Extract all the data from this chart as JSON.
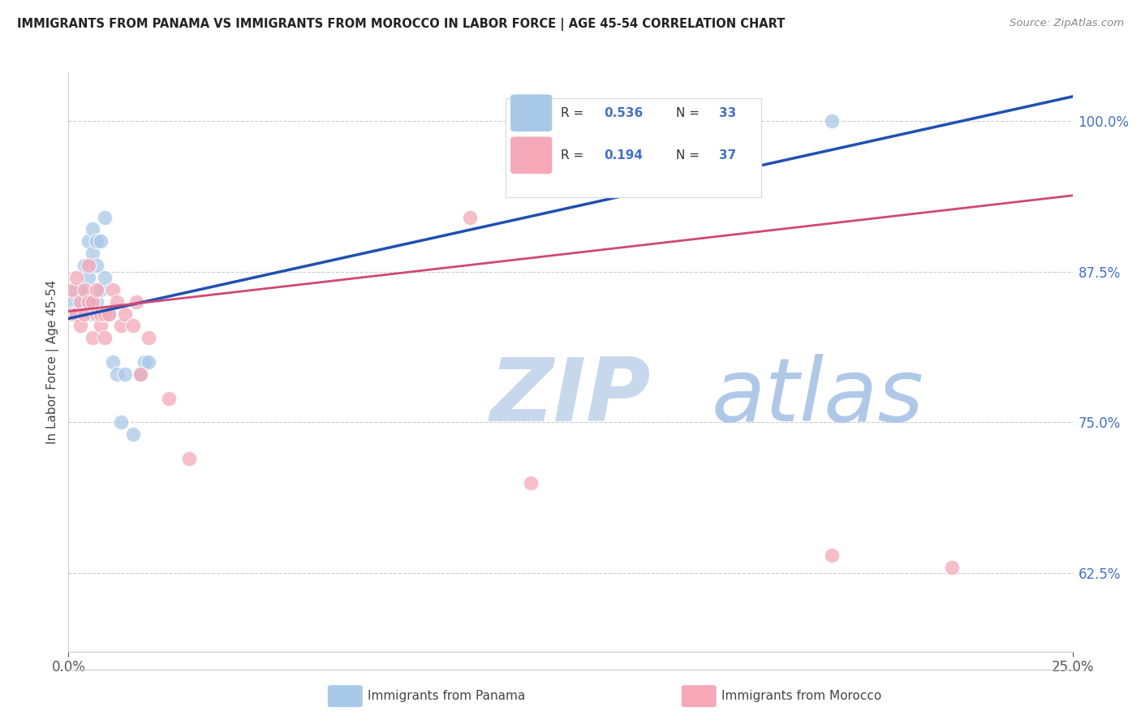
{
  "title": "IMMIGRANTS FROM PANAMA VS IMMIGRANTS FROM MOROCCO IN LABOR FORCE | AGE 45-54 CORRELATION CHART",
  "source": "Source: ZipAtlas.com",
  "ylabel_label": "In Labor Force | Age 45-54",
  "xlim": [
    0.0,
    0.25
  ],
  "ylim": [
    0.56,
    1.04
  ],
  "ytick_vals": [
    0.625,
    0.75,
    0.875,
    1.0
  ],
  "ytick_labels": [
    "62.5%",
    "75.0%",
    "87.5%",
    "100.0%"
  ],
  "xtick_vals": [
    0.0,
    0.25
  ],
  "xtick_labels": [
    "0.0%",
    "25.0%"
  ],
  "legend_r1": "0.536",
  "legend_n1": "33",
  "legend_r2": "0.194",
  "legend_n2": "37",
  "panama_color": "#a8c8e8",
  "morocco_color": "#f4a8b8",
  "line_blue": "#2050b0",
  "line_pink": "#d04878",
  "axis_color": "#cccccc",
  "tick_color": "#4472c4",
  "title_color": "#222222",
  "watermark_zip": "ZIP",
  "watermark_atlas": "atlas",
  "watermark_color_zip": "#c8d8ec",
  "watermark_color_atlas": "#b0c8e8",
  "blue_line_x": [
    0.0,
    0.25
  ],
  "blue_line_y": [
    0.836,
    1.02
  ],
  "pink_line_x": [
    0.0,
    0.25
  ],
  "pink_line_y": [
    0.842,
    0.938
  ],
  "panama_x": [
    0.001,
    0.001,
    0.002,
    0.002,
    0.003,
    0.003,
    0.004,
    0.004,
    0.005,
    0.005,
    0.006,
    0.006,
    0.006,
    0.007,
    0.007,
    0.007,
    0.008,
    0.008,
    0.009,
    0.009,
    0.01,
    0.011,
    0.012,
    0.013,
    0.014,
    0.016,
    0.018,
    0.019,
    0.02,
    0.16,
    0.19
  ],
  "panama_y": [
    0.84,
    0.85,
    0.84,
    0.86,
    0.84,
    0.86,
    0.85,
    0.88,
    0.87,
    0.9,
    0.89,
    0.91,
    0.84,
    0.88,
    0.9,
    0.85,
    0.86,
    0.9,
    0.87,
    0.92,
    0.84,
    0.8,
    0.79,
    0.75,
    0.79,
    0.74,
    0.79,
    0.8,
    0.8,
    1.0,
    1.0
  ],
  "morocco_x": [
    0.001,
    0.001,
    0.002,
    0.002,
    0.003,
    0.003,
    0.004,
    0.004,
    0.005,
    0.005,
    0.006,
    0.006,
    0.007,
    0.007,
    0.008,
    0.008,
    0.009,
    0.009,
    0.01,
    0.011,
    0.012,
    0.013,
    0.014,
    0.016,
    0.017,
    0.018,
    0.02,
    0.025,
    0.03,
    0.1,
    0.115,
    0.19,
    0.22
  ],
  "morocco_y": [
    0.84,
    0.86,
    0.84,
    0.87,
    0.83,
    0.85,
    0.84,
    0.86,
    0.85,
    0.88,
    0.85,
    0.82,
    0.84,
    0.86,
    0.83,
    0.84,
    0.84,
    0.82,
    0.84,
    0.86,
    0.85,
    0.83,
    0.84,
    0.83,
    0.85,
    0.79,
    0.82,
    0.77,
    0.72,
    0.92,
    0.7,
    0.64,
    0.63
  ]
}
